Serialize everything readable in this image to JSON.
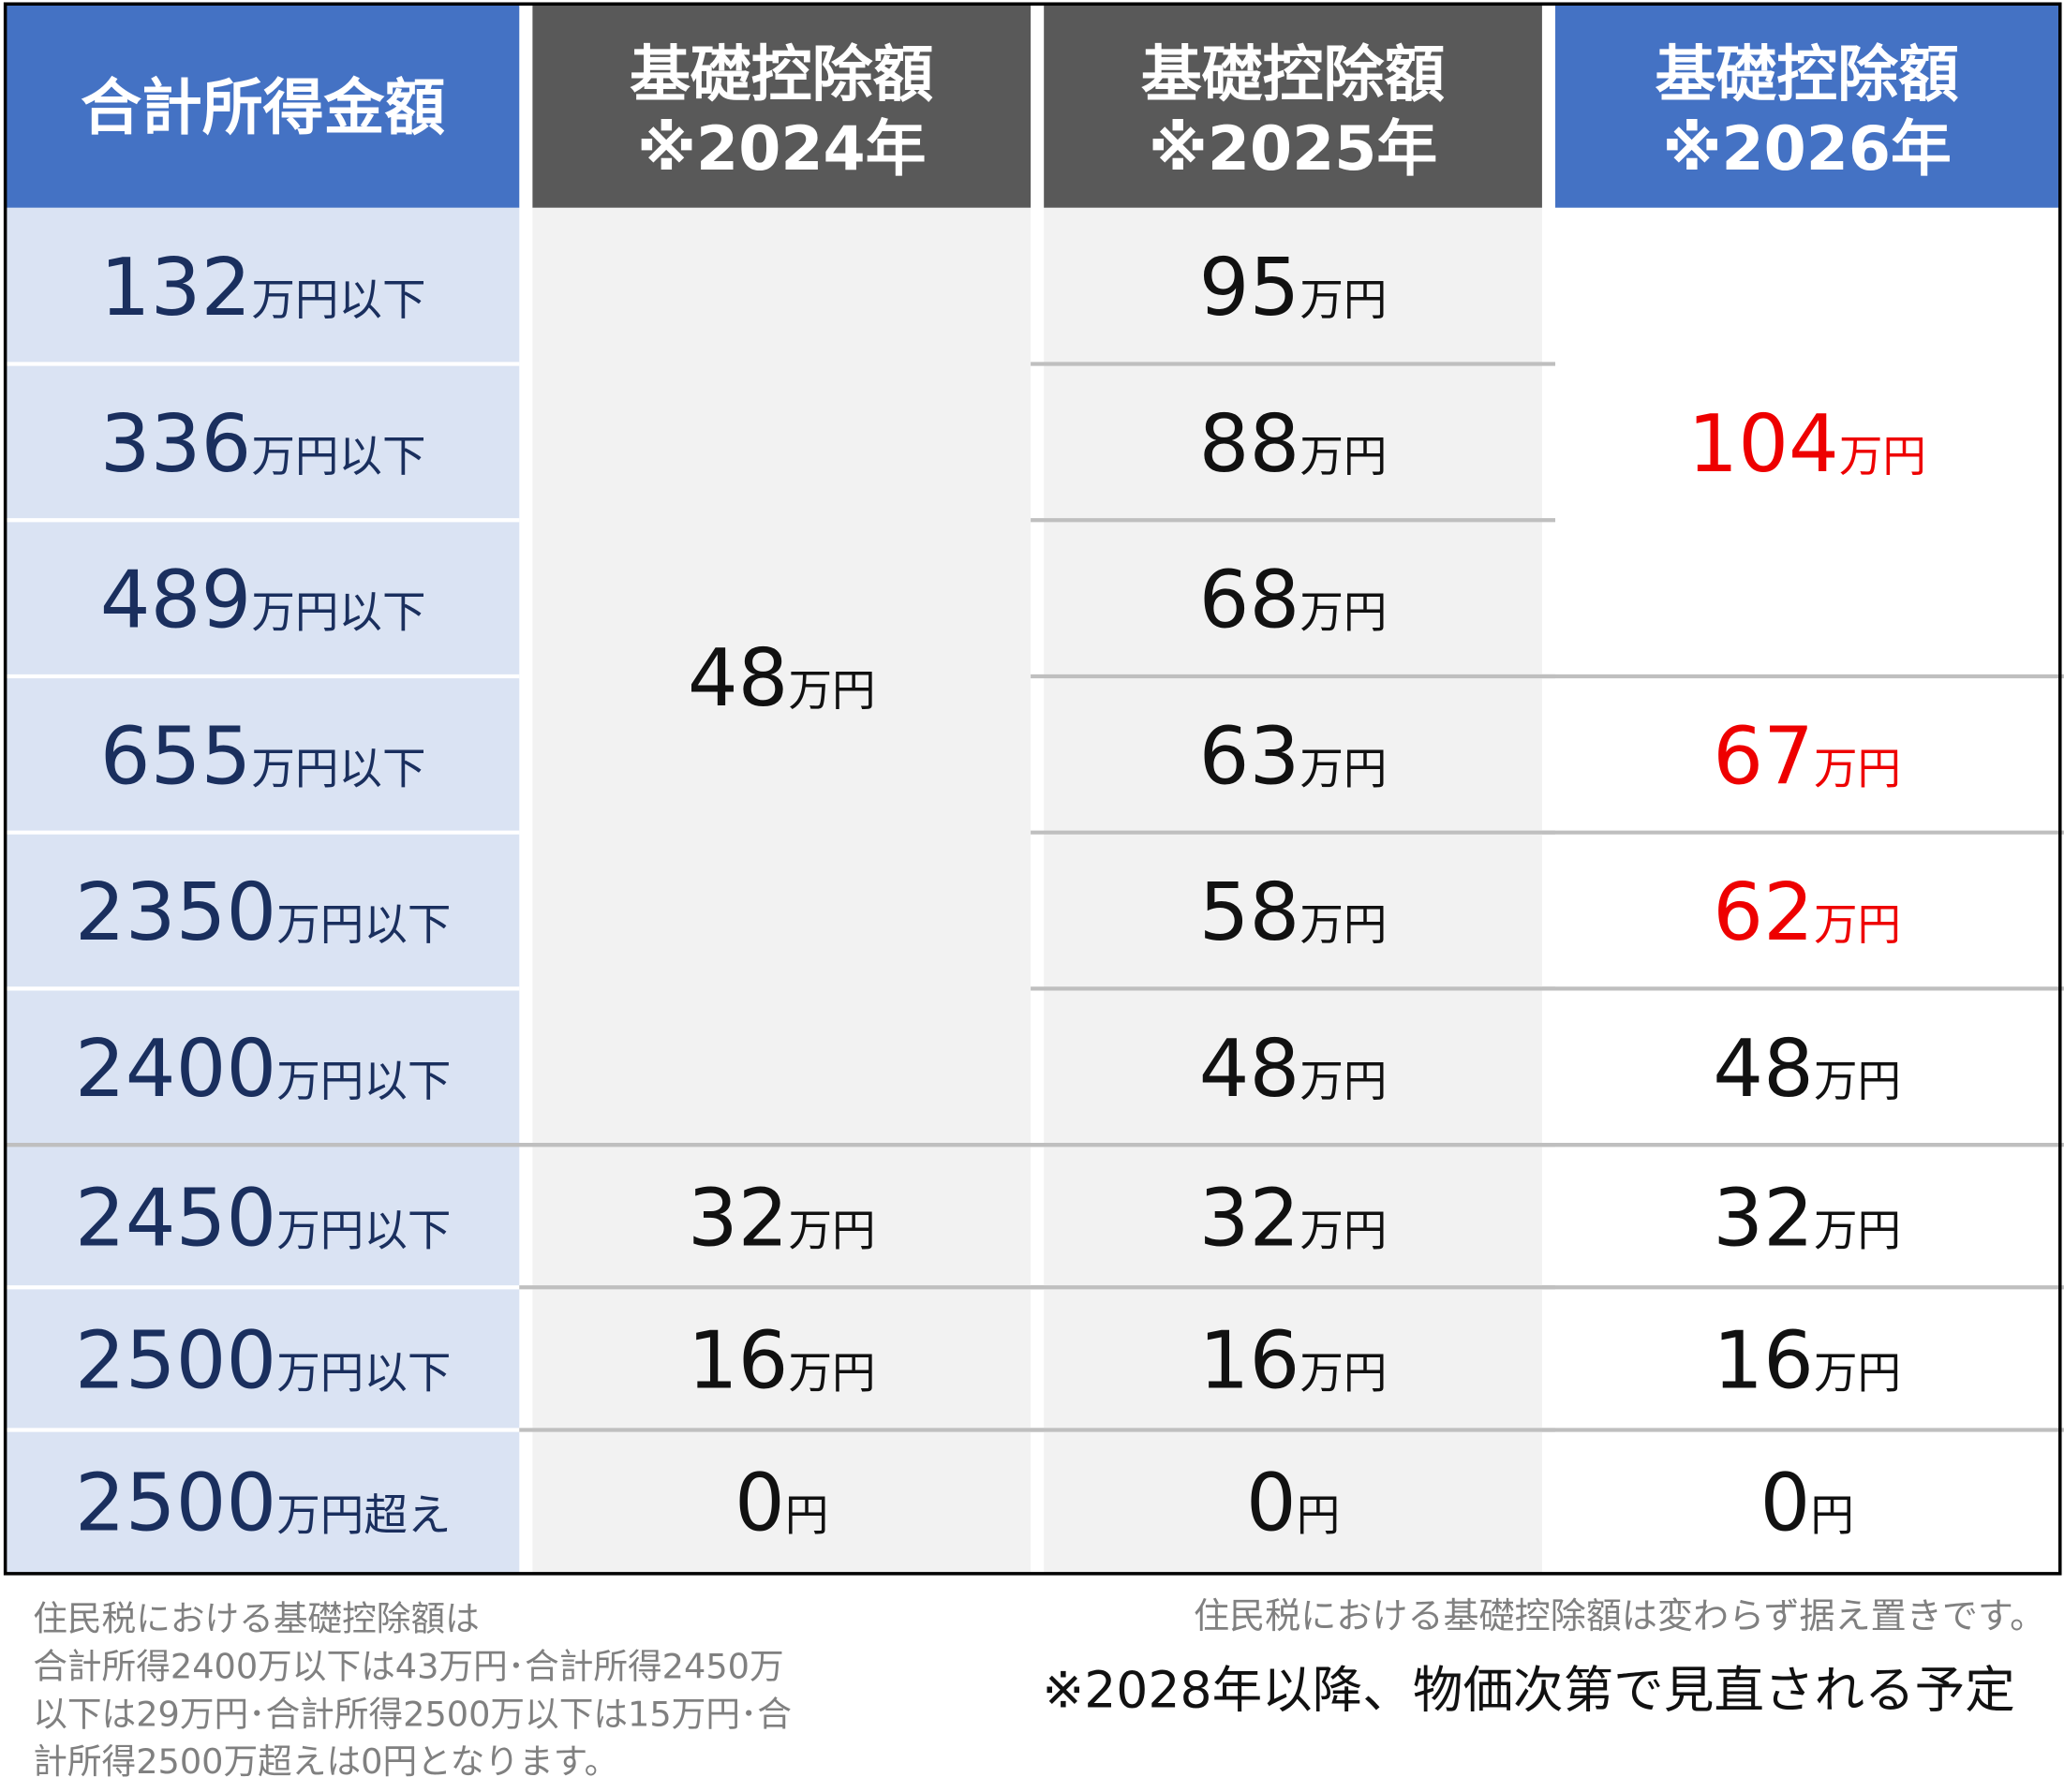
{
  "table": {
    "header": [
      {
        "lines": [
          "合計所得金額"
        ]
      },
      {
        "lines": [
          "基礎控除額",
          "※2024年"
        ]
      },
      {
        "lines": [
          "基礎控除額",
          "※2025年"
        ]
      },
      {
        "lines": [
          "基礎控除額",
          "※2026年"
        ]
      }
    ],
    "rows": [
      {
        "num": "132",
        "unit": "万円以下"
      },
      {
        "num": "336",
        "unit": "万円以下"
      },
      {
        "num": "489",
        "unit": "万円以下"
      },
      {
        "num": "655",
        "unit": "万円以下"
      },
      {
        "num": "2350",
        "unit": "万円以下"
      },
      {
        "num": "2400",
        "unit": "万円以下"
      },
      {
        "num": "2450",
        "unit": "万円以下"
      },
      {
        "num": "2500",
        "unit": "万円以下"
      },
      {
        "num": "2500",
        "unit": "万円超え"
      }
    ],
    "columns": [
      [
        {
          "num": "48",
          "unit": "万円"
        },
        {
          "num": "32",
          "unit": "万円"
        },
        {
          "num": "16",
          "unit": "万円"
        },
        {
          "num": "0",
          "unit": "円"
        }
      ],
      [
        {
          "num": "95",
          "unit": "万円"
        },
        {
          "num": "88",
          "unit": "万円"
        },
        {
          "num": "68",
          "unit": "万円"
        },
        {
          "num": "63",
          "unit": "万円"
        },
        {
          "num": "58",
          "unit": "万円"
        },
        {
          "num": "48",
          "unit": "万円"
        },
        {
          "num": "32",
          "unit": "万円"
        },
        {
          "num": "16",
          "unit": "万円"
        },
        {
          "num": "0",
          "unit": "円"
        }
      ],
      [
        {
          "num": "104",
          "unit": "万円",
          "color": "#ee0000"
        },
        {
          "num": "67",
          "unit": "万円",
          "color": "#ee0000"
        },
        {
          "num": "62",
          "unit": "万円",
          "color": "#ee0000"
        },
        {
          "num": "48",
          "unit": "万円"
        },
        {
          "num": "32",
          "unit": "万円"
        },
        {
          "num": "16",
          "unit": "万円"
        },
        {
          "num": "0",
          "unit": "円"
        }
      ]
    ]
  },
  "notes": {
    "left": [
      "住民税における基礎控除額は",
      "合計所得2400万以下は43万円･合計所得2450万",
      "以下は29万円･合計所得2500万以下は15万円･合",
      "計所得2500万超えは0円となります。"
    ],
    "right": [
      "住民税における基礎控除額は変わらず据え置きです。",
      "※2028年以降、物価次第で見直される予定"
    ]
  }
}
